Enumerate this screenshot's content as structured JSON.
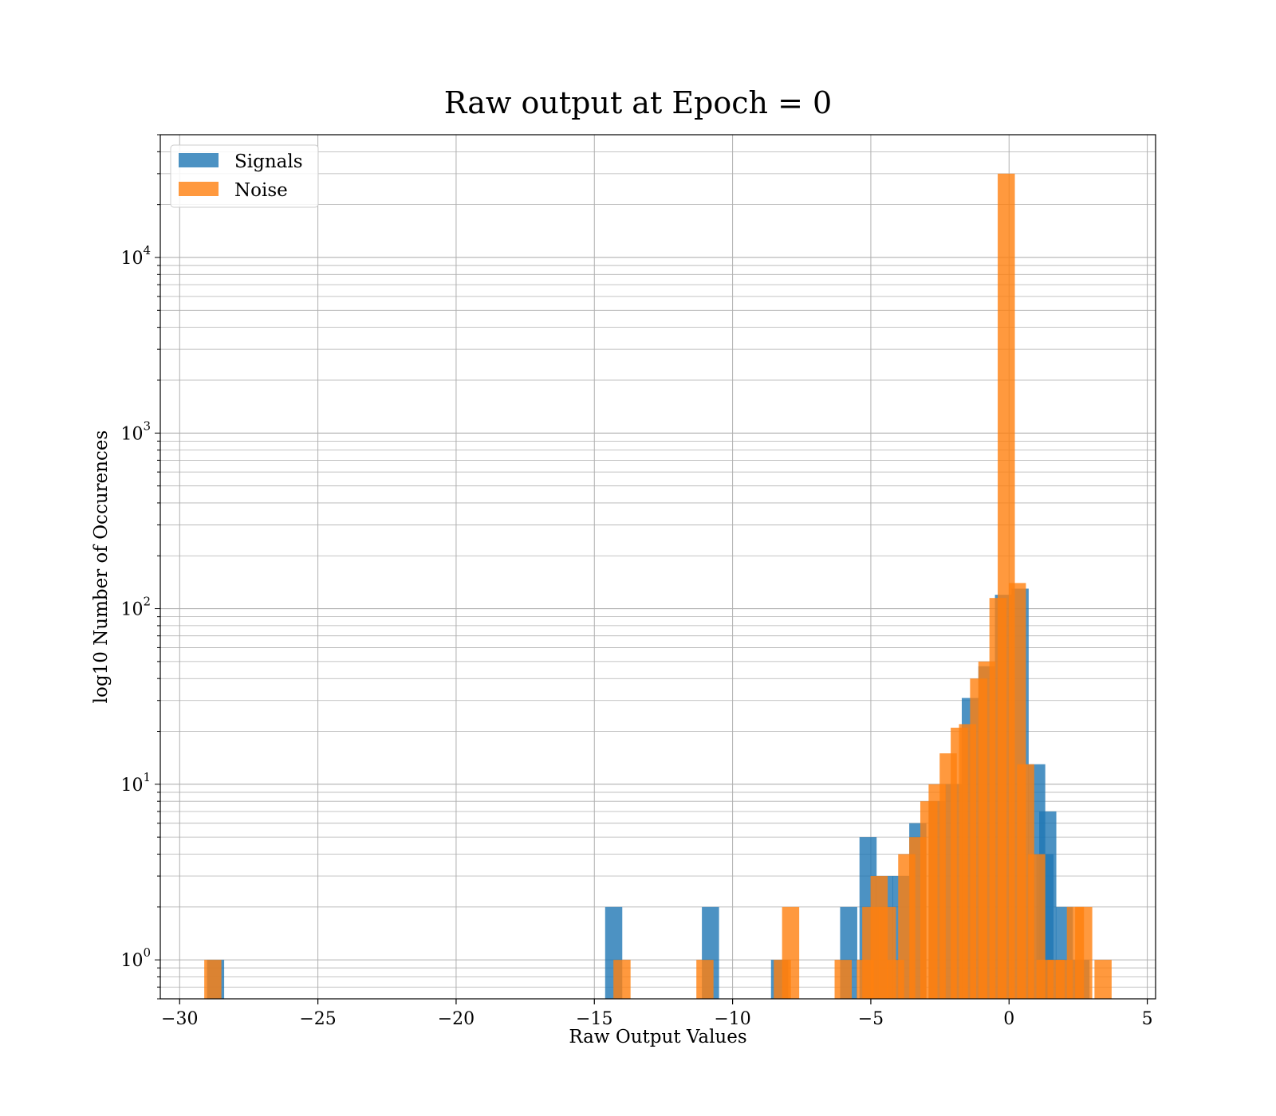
{
  "chart_data": {
    "type": "bar",
    "title": "Raw output at Epoch = 0",
    "xlabel": "Raw Output Values",
    "ylabel": "log10 Number of Occurences",
    "xlim": [
      -30.7,
      5.3
    ],
    "ylim": [
      0.6,
      50000
    ],
    "yscale": "log",
    "bin_width": 0.62,
    "grid": true,
    "legend": "upper-left",
    "xticks": [
      {
        "value": -30,
        "label": "−30"
      },
      {
        "value": -25,
        "label": "−25"
      },
      {
        "value": -20,
        "label": "−20"
      },
      {
        "value": -15,
        "label": "−15"
      },
      {
        "value": -10,
        "label": "−10"
      },
      {
        "value": -5,
        "label": "−5"
      },
      {
        "value": 0,
        "label": "0"
      },
      {
        "value": 5,
        "label": "5"
      }
    ],
    "yticks": [
      {
        "value": 1,
        "base": "10",
        "exp": "0"
      },
      {
        "value": 10,
        "base": "10",
        "exp": "1"
      },
      {
        "value": 100,
        "base": "10",
        "exp": "2"
      },
      {
        "value": 1000,
        "base": "10",
        "exp": "3"
      },
      {
        "value": 10000,
        "base": "10",
        "exp": "4"
      }
    ],
    "series": [
      {
        "name": "Signals",
        "color": "#1f77b4",
        "bins": [
          {
            "x": -28.7,
            "y": 1
          },
          {
            "x": -14.3,
            "y": 2
          },
          {
            "x": -10.8,
            "y": 2
          },
          {
            "x": -8.3,
            "y": 1
          },
          {
            "x": -5.8,
            "y": 2
          },
          {
            "x": -5.1,
            "y": 5
          },
          {
            "x": -4.5,
            "y": 3
          },
          {
            "x": -3.9,
            "y": 3
          },
          {
            "x": -3.3,
            "y": 6
          },
          {
            "x": -2.6,
            "y": 8
          },
          {
            "x": -2.0,
            "y": 10
          },
          {
            "x": -1.4,
            "y": 31
          },
          {
            "x": -0.8,
            "y": 47
          },
          {
            "x": -0.2,
            "y": 120
          },
          {
            "x": 0.4,
            "y": 130
          },
          {
            "x": 1.0,
            "y": 13
          },
          {
            "x": 1.3,
            "y": 4
          },
          {
            "x": 1.4,
            "y": 7
          },
          {
            "x": 2.0,
            "y": 2
          },
          {
            "x": 2.6,
            "y": 1
          }
        ]
      },
      {
        "name": "Noise",
        "color": "#ff7f0e",
        "bins": [
          {
            "x": -28.8,
            "y": 1
          },
          {
            "x": -14.0,
            "y": 1
          },
          {
            "x": -11.0,
            "y": 1
          },
          {
            "x": -8.2,
            "y": 1
          },
          {
            "x": -7.9,
            "y": 2
          },
          {
            "x": -6.0,
            "y": 1
          },
          {
            "x": -5.2,
            "y": 1
          },
          {
            "x": -5.0,
            "y": 2
          },
          {
            "x": -4.7,
            "y": 3
          },
          {
            "x": -4.4,
            "y": 2
          },
          {
            "x": -4.1,
            "y": 1
          },
          {
            "x": -3.7,
            "y": 4
          },
          {
            "x": -3.3,
            "y": 5
          },
          {
            "x": -2.9,
            "y": 8
          },
          {
            "x": -2.6,
            "y": 10
          },
          {
            "x": -2.2,
            "y": 15
          },
          {
            "x": -1.8,
            "y": 21
          },
          {
            "x": -1.5,
            "y": 22
          },
          {
            "x": -1.1,
            "y": 40
          },
          {
            "x": -0.8,
            "y": 50
          },
          {
            "x": -0.4,
            "y": 115
          },
          {
            "x": -0.1,
            "y": 30000
          },
          {
            "x": 0.3,
            "y": 140
          },
          {
            "x": 0.6,
            "y": 13
          },
          {
            "x": 1.0,
            "y": 4
          },
          {
            "x": 1.3,
            "y": 1
          },
          {
            "x": 1.7,
            "y": 1
          },
          {
            "x": 2.0,
            "y": 1
          },
          {
            "x": 2.4,
            "y": 2
          },
          {
            "x": 2.7,
            "y": 2
          },
          {
            "x": 3.4,
            "y": 1
          }
        ]
      }
    ]
  }
}
